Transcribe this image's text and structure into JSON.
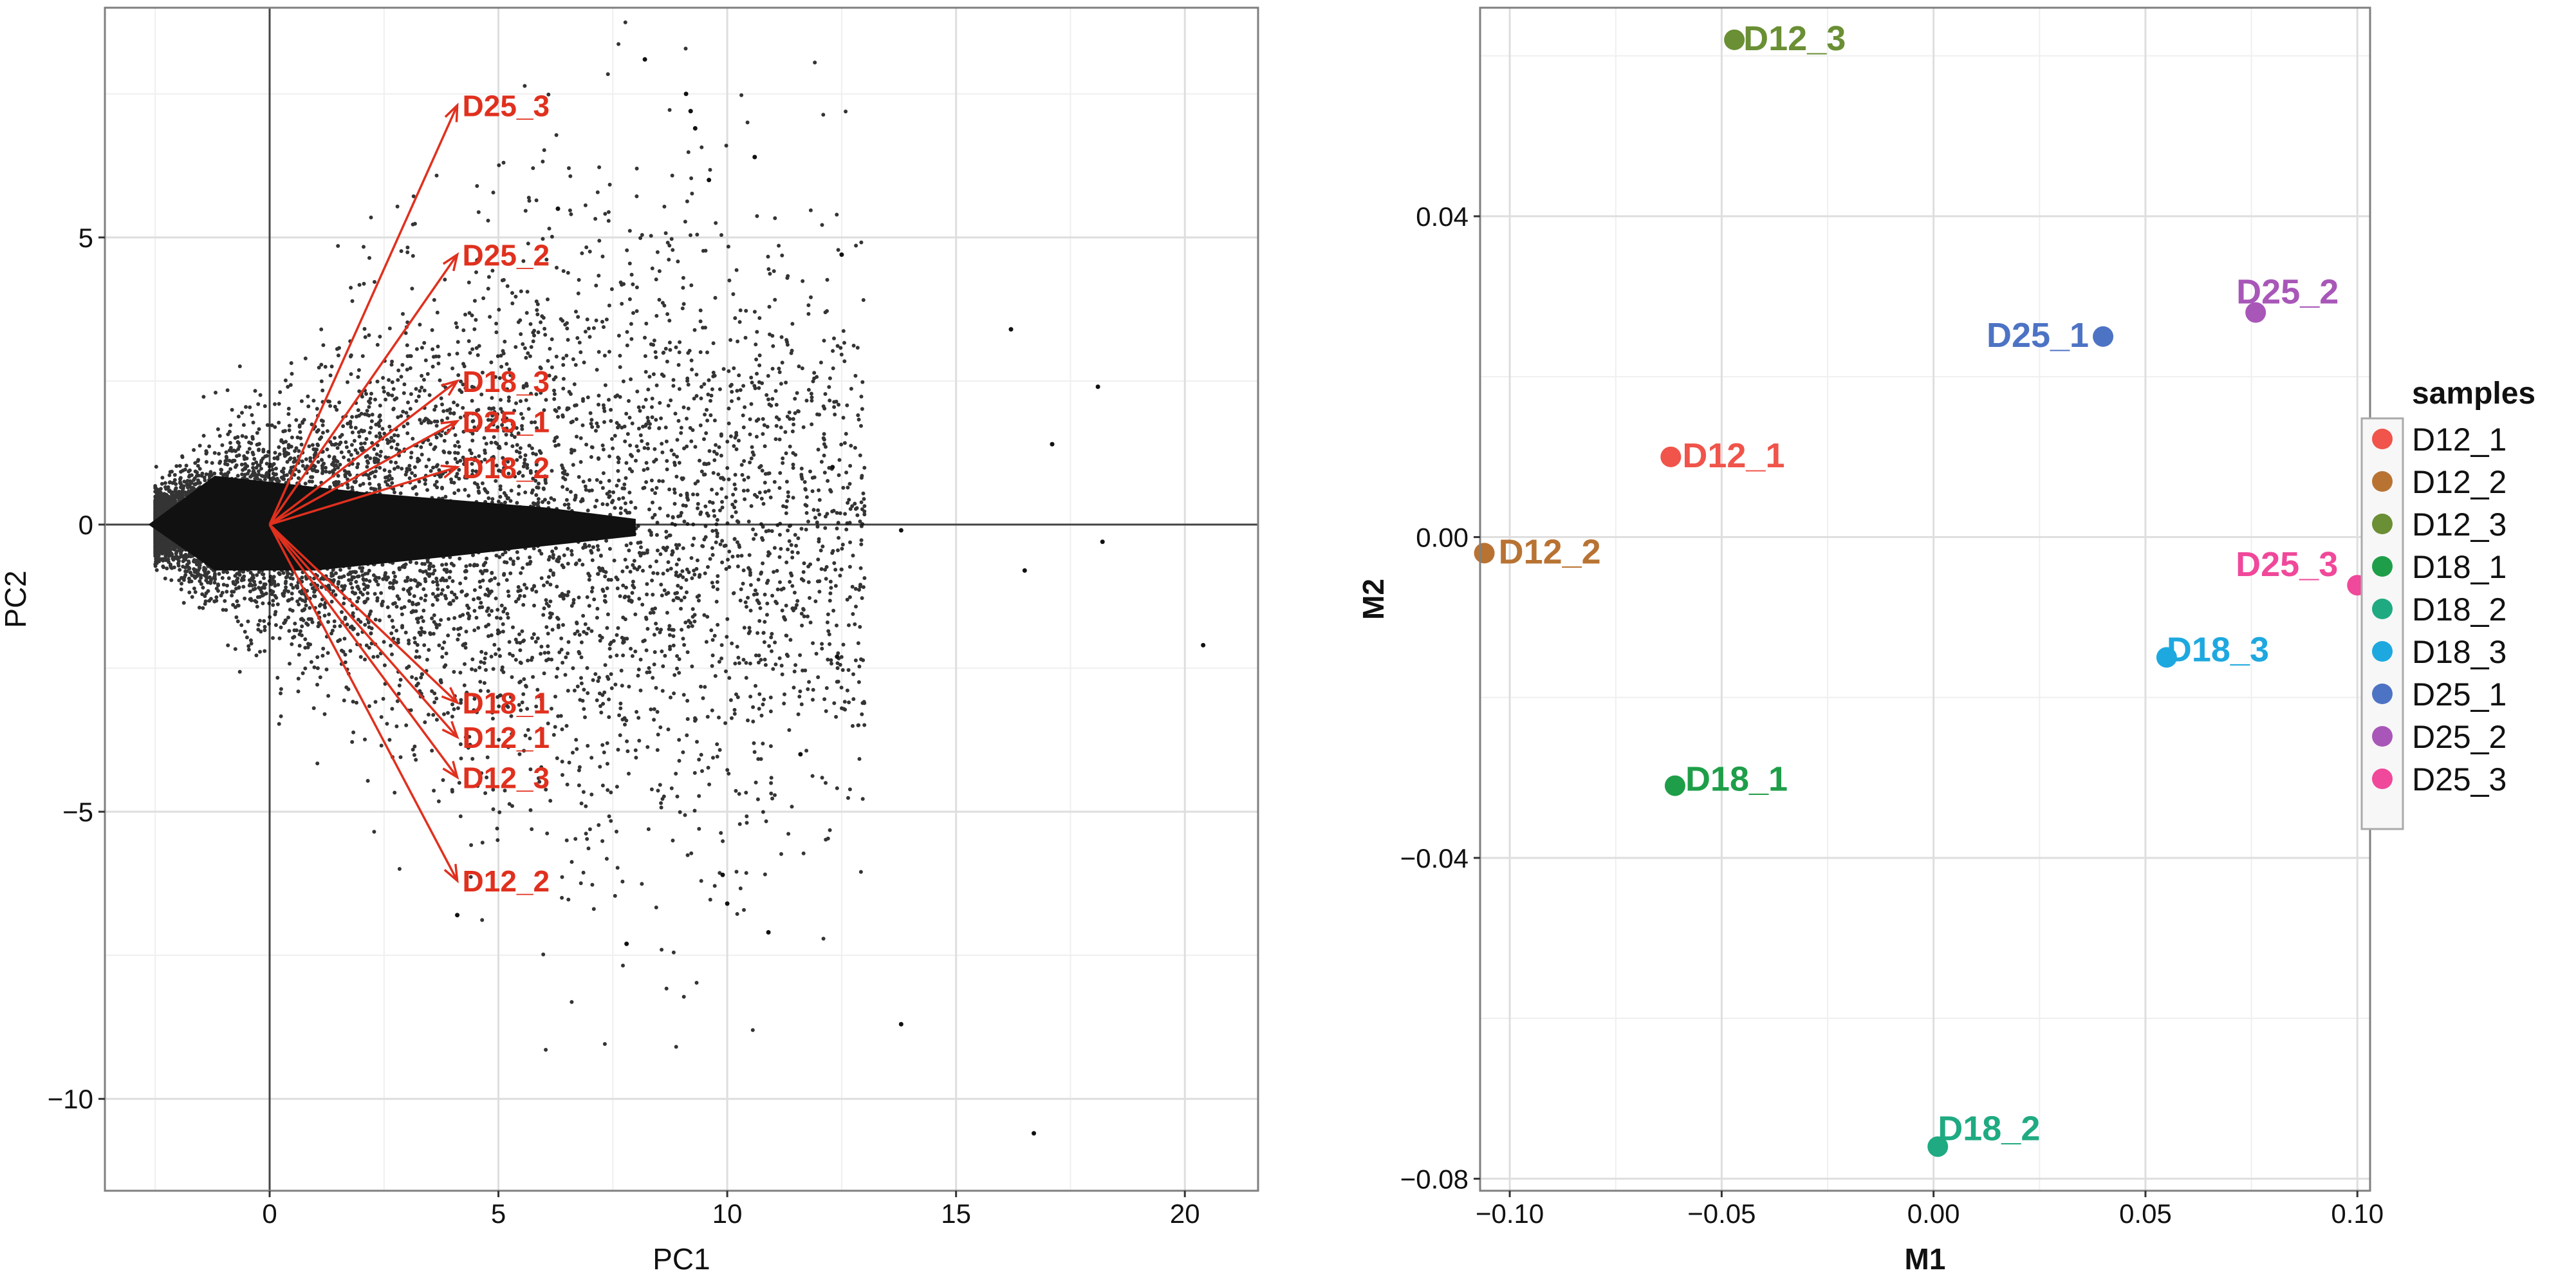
{
  "colors": {
    "arrow": "#e0301e",
    "points": "#111111",
    "grid_major": "#dedede",
    "grid_minor": "#efefef",
    "axis_line": "#444444",
    "panel_border": "#7f7f7f"
  },
  "chart_data": [
    {
      "type": "scatter",
      "subtype": "biplot",
      "xlabel": "PC1",
      "ylabel": "PC2",
      "xlim": [
        -3.6,
        21.6
      ],
      "ylim": [
        -11.6,
        9.0
      ],
      "xticks": [
        0,
        5,
        10,
        15,
        20
      ],
      "yticks": [
        -10,
        -5,
        0,
        5
      ],
      "xtick_labels": [
        "0",
        "5",
        "10",
        "15",
        "20"
      ],
      "ytick_labels": [
        "−10",
        "−5",
        "0",
        "5"
      ],
      "grid": true,
      "reference_lines": {
        "x": 0,
        "y": 0
      },
      "loadings": [
        {
          "label": "D25_3",
          "x": 4.1,
          "y": 7.3
        },
        {
          "label": "D25_2",
          "x": 4.1,
          "y": 4.7
        },
        {
          "label": "D18_3",
          "x": 4.1,
          "y": 2.5
        },
        {
          "label": "D25_1",
          "x": 4.1,
          "y": 1.8
        },
        {
          "label": "D18_2",
          "x": 4.1,
          "y": 1.0
        },
        {
          "label": "D18_1",
          "x": 4.1,
          "y": -3.1
        },
        {
          "label": "D12_1",
          "x": 4.1,
          "y": -3.7
        },
        {
          "label": "D12_3",
          "x": 4.1,
          "y": -4.4
        },
        {
          "label": "D12_2",
          "x": 4.1,
          "y": -6.2
        }
      ],
      "scores_cloud": {
        "description": "dense cloud of thousands of gene scores, wedge-shaped, widest near PC1 = 0",
        "outliers": [
          [
            8.2,
            8.1
          ],
          [
            9.1,
            7.5
          ],
          [
            9.2,
            7.2
          ],
          [
            9.3,
            6.9
          ],
          [
            10.6,
            6.4
          ],
          [
            9.6,
            6.0
          ],
          [
            6.3,
            5.5
          ],
          [
            12.5,
            4.7
          ],
          [
            16.2,
            3.4
          ],
          [
            18.1,
            2.4
          ],
          [
            17.1,
            1.4
          ],
          [
            12.3,
            1.0
          ],
          [
            13.8,
            -0.1
          ],
          [
            18.2,
            -0.3
          ],
          [
            16.5,
            -0.8
          ],
          [
            12.4,
            -2.3
          ],
          [
            20.4,
            -2.1
          ],
          [
            11.6,
            -4.0
          ],
          [
            9.9,
            -6.1
          ],
          [
            10.0,
            -6.6
          ],
          [
            10.9,
            -7.1
          ],
          [
            7.8,
            -7.3
          ],
          [
            4.1,
            -6.8
          ],
          [
            13.8,
            -8.7
          ],
          [
            16.7,
            -10.6
          ]
        ]
      }
    },
    {
      "type": "scatter",
      "xlabel": "M1",
      "ylabel": "M2",
      "xlim": [
        -0.107,
        0.103
      ],
      "ylim": [
        -0.0815,
        0.066
      ],
      "xticks": [
        -0.1,
        -0.05,
        0.0,
        0.05,
        0.1
      ],
      "yticks": [
        -0.08,
        -0.04,
        0.0,
        0.04
      ],
      "xtick_labels": [
        "−0.10",
        "−0.05",
        "0.00",
        "0.05",
        "0.10"
      ],
      "ytick_labels": [
        "−0.08",
        "−0.04",
        "0.00",
        "0.04"
      ],
      "grid": true,
      "legend_title": "samples",
      "legend_position": "right",
      "series": [
        {
          "name": "D12_1",
          "color": "#f0544a",
          "x": -0.062,
          "y": 0.01
        },
        {
          "name": "D12_2",
          "color": "#b87333",
          "x": -0.106,
          "y": -0.002
        },
        {
          "name": "D12_3",
          "color": "#6a8f34",
          "x": -0.047,
          "y": 0.062
        },
        {
          "name": "D18_1",
          "color": "#1e9e48",
          "x": -0.061,
          "y": -0.031
        },
        {
          "name": "D18_2",
          "color": "#1faa82",
          "x": 0.001,
          "y": -0.076
        },
        {
          "name": "D18_3",
          "color": "#1ea8e0",
          "x": 0.055,
          "y": -0.015
        },
        {
          "name": "D25_1",
          "color": "#4d73c4",
          "x": 0.04,
          "y": 0.025
        },
        {
          "name": "D25_2",
          "color": "#a857b8",
          "x": 0.076,
          "y": 0.028
        },
        {
          "name": "D25_3",
          "color": "#f0489a",
          "x": 0.1,
          "y": -0.006
        }
      ]
    }
  ]
}
